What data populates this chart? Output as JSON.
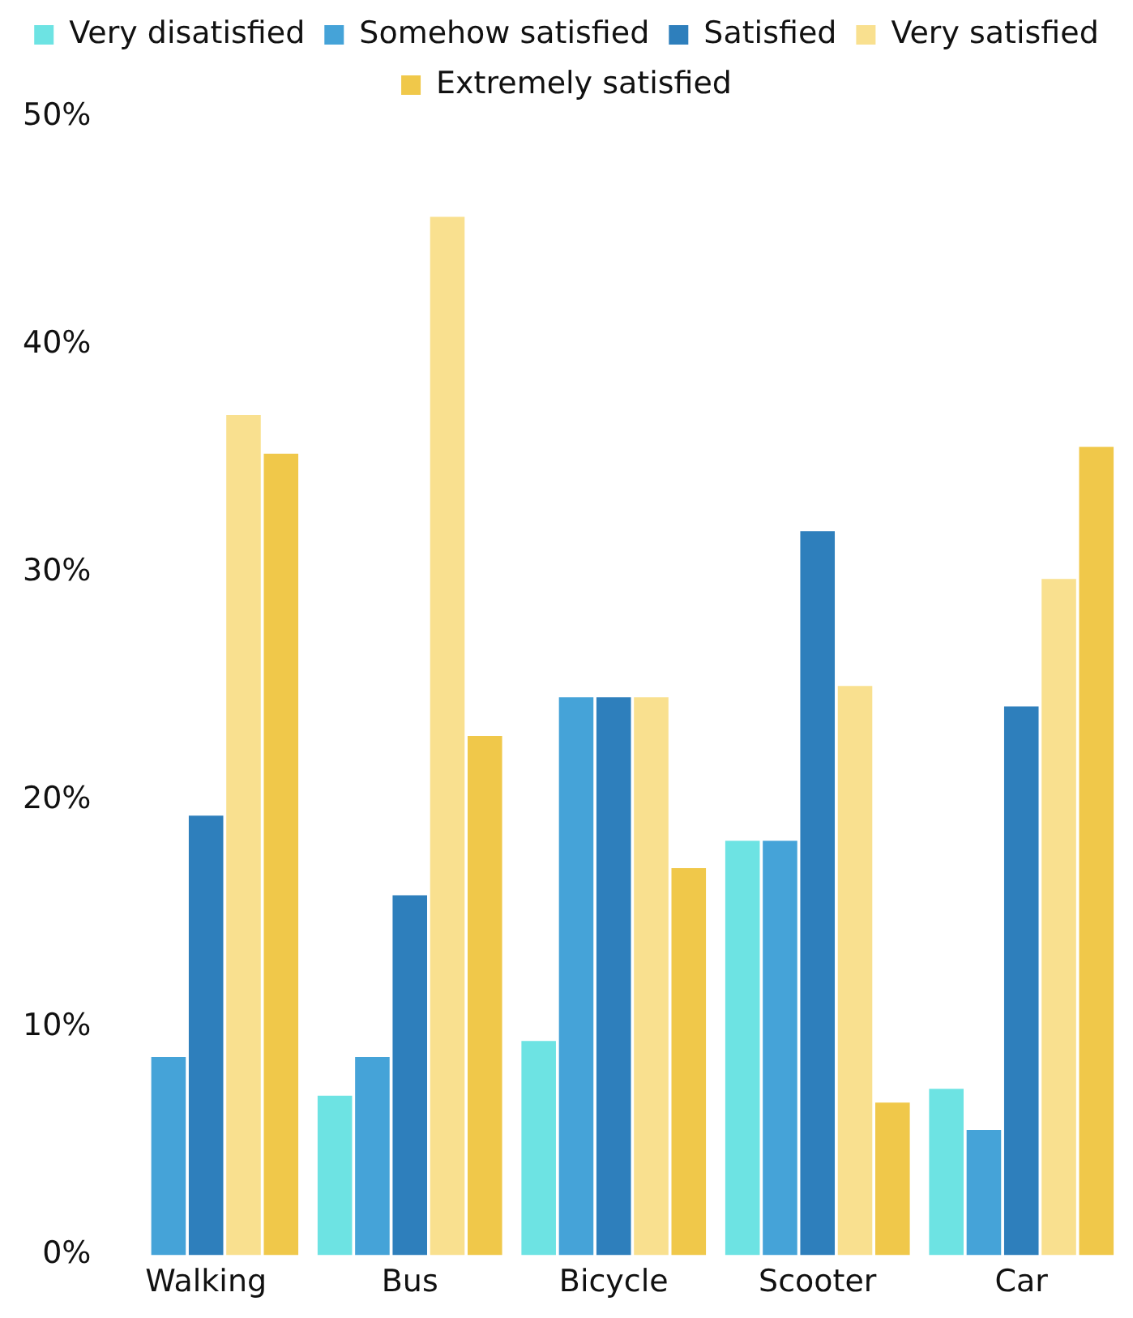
{
  "chart_data": {
    "type": "bar",
    "categories": [
      "Walking",
      "Bus",
      "Bicycle",
      "Scooter",
      "Car"
    ],
    "series": [
      {
        "name": "Very disatisfied",
        "color": "#6de3e3",
        "values": [
          0,
          7.0,
          9.4,
          18.2,
          7.3
        ]
      },
      {
        "name": "Somehow satisfied",
        "color": "#45a3d8",
        "values": [
          8.7,
          8.7,
          24.5,
          18.2,
          5.5
        ]
      },
      {
        "name": "Satisfied",
        "color": "#2e7fbc",
        "values": [
          19.3,
          15.8,
          24.5,
          31.8,
          24.1
        ]
      },
      {
        "name": "Very satisfied",
        "color": "#f9e08f",
        "values": [
          36.9,
          45.6,
          24.5,
          25.0,
          29.7
        ]
      },
      {
        "name": "Extremely satisfied",
        "color": "#f0c84a",
        "values": [
          35.2,
          22.8,
          17.0,
          6.7,
          35.5
        ]
      }
    ],
    "ylim": [
      0,
      50
    ],
    "yticks": [
      {
        "value": 0,
        "label": "0%"
      },
      {
        "value": 10,
        "label": "10%"
      },
      {
        "value": 20,
        "label": "20%"
      },
      {
        "value": 30,
        "label": "30%"
      },
      {
        "value": 40,
        "label": "40%"
      },
      {
        "value": 50,
        "label": "50%"
      }
    ],
    "grid": false,
    "legend": "top"
  }
}
